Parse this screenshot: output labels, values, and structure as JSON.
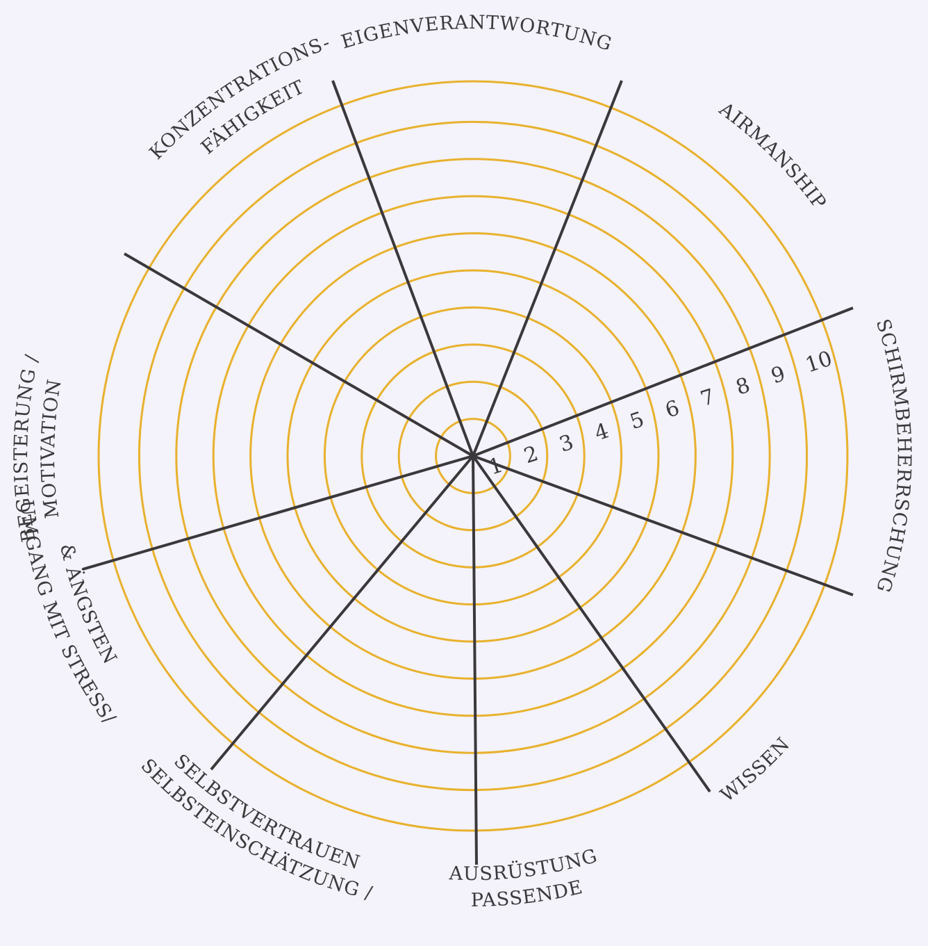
{
  "colors": {
    "background": "#f4f2fa",
    "ring": "#e8b12e",
    "spoke": "#3b383c",
    "text": "#3a3a3c"
  },
  "scale": {
    "min": 1,
    "max": 10,
    "labels": [
      "1",
      "2",
      "3",
      "4",
      "5",
      "6",
      "7",
      "8",
      "9",
      "10"
    ]
  },
  "categories": [
    {
      "id": "eigenverantwortung",
      "lines": [
        "EIGENVERANTWORTUNG"
      ]
    },
    {
      "id": "airmanship",
      "lines": [
        "AIRMANSHIP"
      ]
    },
    {
      "id": "schirmbeherrschung",
      "lines": [
        "SCHIRMBEHERRSCHUNG"
      ]
    },
    {
      "id": "wissen",
      "lines": [
        "WISSEN"
      ]
    },
    {
      "id": "passende-ausruestung",
      "lines": [
        "PASSENDE",
        "AUSRÜSTUNG"
      ]
    },
    {
      "id": "selbsteinschaetzung",
      "lines": [
        "SELBSTEINSCHÄTZUNG /",
        "SELBSTVERTRAUEN"
      ]
    },
    {
      "id": "umgang-mit-stress",
      "lines": [
        "UMGANG MIT STRESS/",
        "& ÄNGSTEN"
      ]
    },
    {
      "id": "begeisterung",
      "lines": [
        "BEGEISTERUNG /",
        "MOTIVATION"
      ]
    },
    {
      "id": "konzentrationsfaehigkeit",
      "lines": [
        "KONZENTRATIONS-",
        "FÄHIGKEIT"
      ]
    }
  ]
}
